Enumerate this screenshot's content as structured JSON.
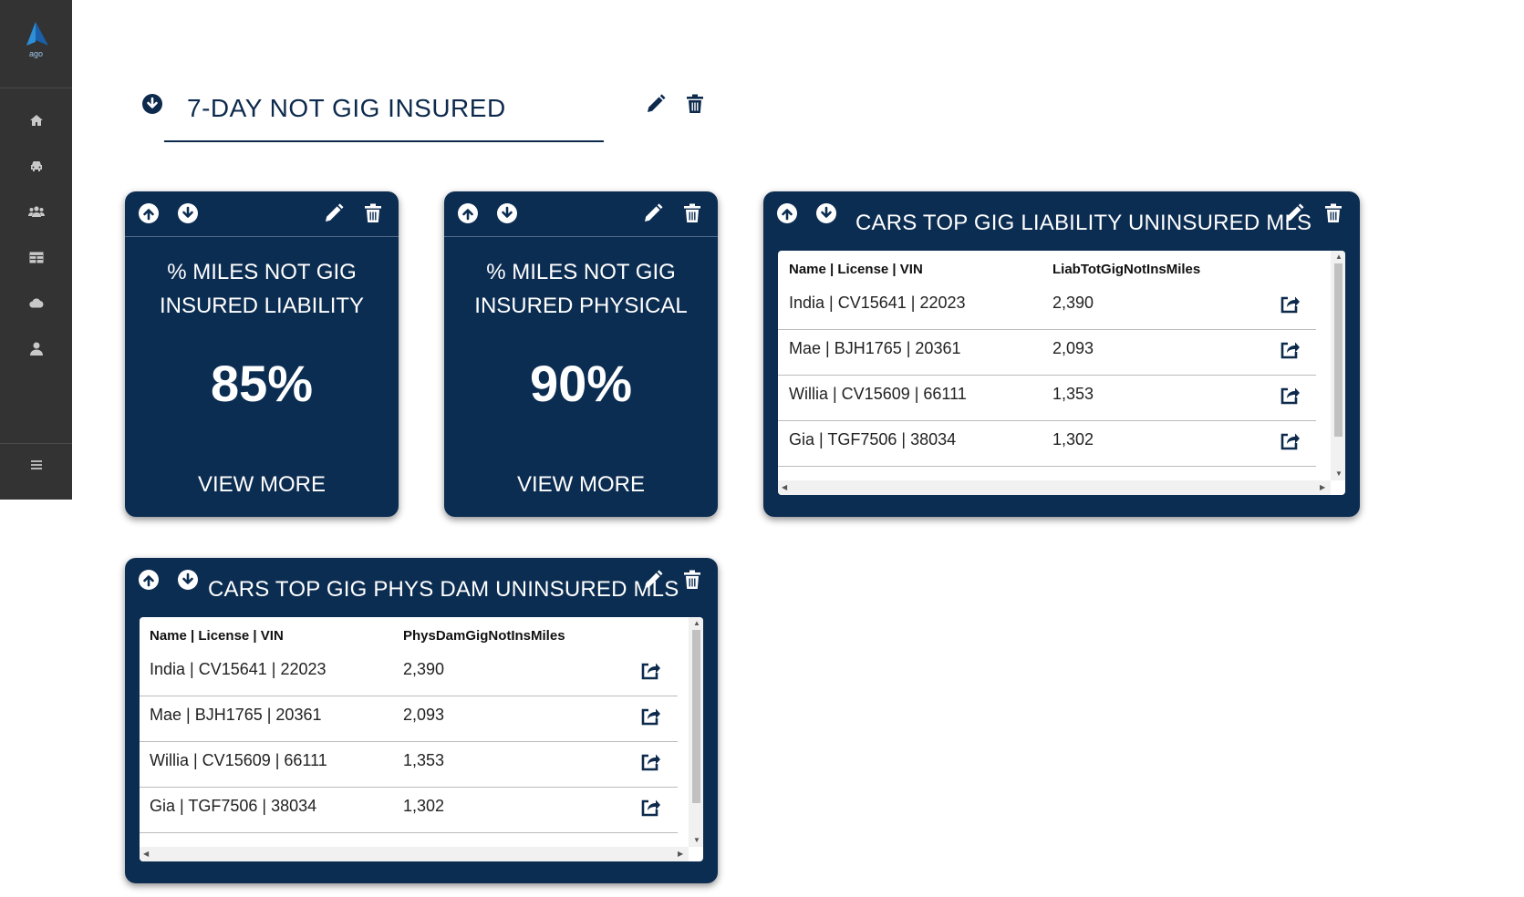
{
  "app": {
    "logo_text": "ago",
    "accent": "#0c2d52",
    "sidebar_bg": "#333333"
  },
  "sidebar": {
    "items": [
      {
        "icon": "home-icon"
      },
      {
        "icon": "car-icon"
      },
      {
        "icon": "users-icon"
      },
      {
        "icon": "table-icon"
      },
      {
        "icon": "cloud-icon"
      },
      {
        "icon": "user-icon"
      }
    ],
    "menu_icon": "hamburger-menu-icon"
  },
  "header": {
    "title": "7-DAY NOT GIG INSURED"
  },
  "cards": [
    {
      "title_line1": "% MILES NOT GIG",
      "title_line2": "INSURED LIABILITY",
      "value": "85%",
      "link": "VIEW MORE"
    },
    {
      "title_line1": "% MILES NOT GIG",
      "title_line2": "INSURED PHYSICAL",
      "value": "90%",
      "link": "VIEW MORE"
    }
  ],
  "tables": [
    {
      "title": "CARS TOP GIG LIABILITY UNINSURED MLS",
      "columns": [
        "Name | License | VIN",
        "LiabTotGigNotInsMiles"
      ],
      "rows": [
        {
          "name": "India | CV15641 | 22023",
          "value": "2,390"
        },
        {
          "name": "Mae | BJH1765 | 20361",
          "value": "2,093"
        },
        {
          "name": "Willia | CV15609 | 66111",
          "value": "1,353"
        },
        {
          "name": "Gia | TGF7506 | 38034",
          "value": "1,302"
        }
      ]
    },
    {
      "title": "CARS TOP GIG PHYS DAM UNINSURED MLS",
      "columns": [
        "Name | License | VIN",
        "PhysDamGigNotInsMiles"
      ],
      "rows": [
        {
          "name": "India | CV15641 | 22023",
          "value": "2,390"
        },
        {
          "name": "Mae | BJH1765 | 20361",
          "value": "2,093"
        },
        {
          "name": "Willia | CV15609 | 66111",
          "value": "1,353"
        },
        {
          "name": "Gia | TGF7506 | 38034",
          "value": "1,302"
        }
      ]
    }
  ]
}
